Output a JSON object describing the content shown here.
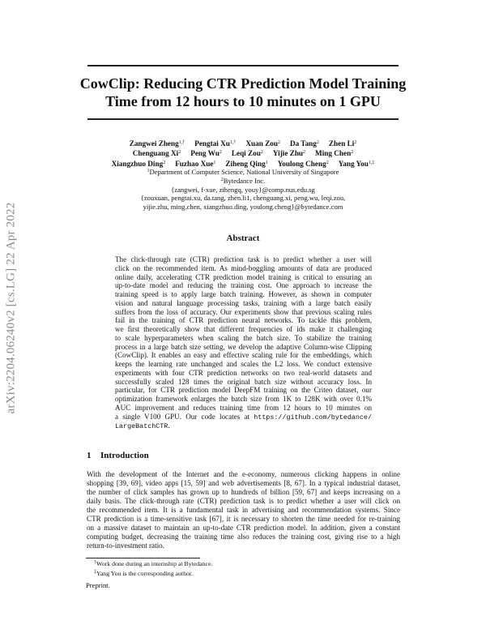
{
  "side_stamp": "arXiv:2204.06240v2  [cs.LG]  22 Apr 2022",
  "title": [
    "CowClip: Reducing CTR Prediction Model Training",
    "Time from 12 hours to 10 minutes on 1 GPU"
  ],
  "author_lines": [
    [
      {
        "name": "Zangwei Zheng",
        "sup": "1,†"
      },
      {
        "name": "Pengtai Xu",
        "sup": "1,†"
      },
      {
        "name": "Xuan Zou",
        "sup": "2"
      },
      {
        "name": "Da Tang",
        "sup": "2"
      },
      {
        "name": "Zhen Li",
        "sup": "2"
      }
    ],
    [
      {
        "name": "Chenguang Xi",
        "sup": "2"
      },
      {
        "name": "Peng Wu",
        "sup": "2"
      },
      {
        "name": "Leqi Zou",
        "sup": "2"
      },
      {
        "name": "Yijie Zhu",
        "sup": "2"
      },
      {
        "name": "Ming Chen",
        "sup": "2"
      }
    ],
    [
      {
        "name": "Xiangzhuo Ding",
        "sup": "2"
      },
      {
        "name": "Fuzhao Xue",
        "sup": "1"
      },
      {
        "name": "Ziheng Qing",
        "sup": "1"
      },
      {
        "name": "Youlong Cheng",
        "sup": "2"
      },
      {
        "name": "Yang You",
        "sup": "1,‡"
      }
    ]
  ],
  "affiliations": [
    {
      "sup": "1",
      "text": "Department of Computer Science, National University of Singapore"
    },
    {
      "sup": "2",
      "text": "Bytedance Inc."
    }
  ],
  "emails": [
    "{zangwei, f-xue, zihengq, youy}@comp.nus.edu.sg",
    "{zouxuan, pengtai.xu, da.tang, zhen.li1, chenguang.xi, peng.wu, leqi.zou,",
    "yijie.zhu, ming.chen, xiangzhuo.ding, youlong.cheng}@bytedance.com"
  ],
  "abstract": {
    "heading": "Abstract",
    "lines": [
      "The click-through rate (CTR) prediction task is to predict whether a user will",
      "click on the recommended item. As mind-boggling amounts of data are produced",
      "online daily, accelerating CTR prediction model training is critical to ensuring an",
      "up-to-date model and reducing the training cost. One approach to increase the",
      "training speed is to apply large batch training. However, as shown in computer",
      "vision and natural language processing tasks, training with a large batch easily",
      "suffers from the loss of accuracy. Our experiments show that previous scaling rules",
      "fail in the training of CTR prediction neural networks. To tackle this problem,",
      "we first theoretically show that different frequencies of ids make it challenging",
      "to scale hyperparameters when scaling the batch size. To stabilize the training",
      "process in a large batch size setting, we develop the adaptive Column-wise Clipping",
      "(CowClip). It enables an easy and effective scaling rule for the embeddings, which",
      "keeps the learning rate unchanged and scales the L2 loss. We conduct extensive",
      "experiments with four CTR prediction networks on two real-world datasets and",
      "successfully scaled 128 times the original batch size without accuracy loss. In",
      "particular, for CTR prediction model DeepFM training on the Criteo dataset, our",
      "optimization framework enlarges the batch size from 1K to 128K with over 0.1%",
      "AUC improvement and reduces training time from 12 hours to 10 minutes on"
    ],
    "line_pre_url": "a single V100 GPU. Our code locates at",
    "url_part1": "https://github.com/bytedance/",
    "url_part2": "LargeBatchCTR",
    "url_end": "."
  },
  "introduction": {
    "number": "1",
    "heading": "Introduction",
    "lines": [
      "With the development of the Internet and the e-economy, numerous clicking happens in online",
      "shopping [39, 69], video apps [15, 59] and web advertisements [8, 67]. In a typical industrial dataset,",
      "the number of click samples has grown up to hundreds of billion [59, 67] and keeps increasing on a",
      "daily basis. The click-through rate (CTR) prediction task is to predict whether a user will click on",
      "the recommended item. It is a fundamental task in advertising and recommendation systems. Since",
      "CTR prediction is a time-sensitive task [67], it is necessary to shorten the time needed for re-training",
      "on a massive dataset to maintain an up-to-date CTR prediction model. In addition, given a constant",
      "computing budget, decreasing the training time also reduces the training cost, giving rise to a high",
      "return-to-investment ratio."
    ]
  },
  "footnotes": [
    {
      "mark": "†",
      "text": "Work done during an internship at Bytedance."
    },
    {
      "mark": "‡",
      "text": "Yang You is the corresponding author."
    }
  ],
  "preprint": "Preprint."
}
